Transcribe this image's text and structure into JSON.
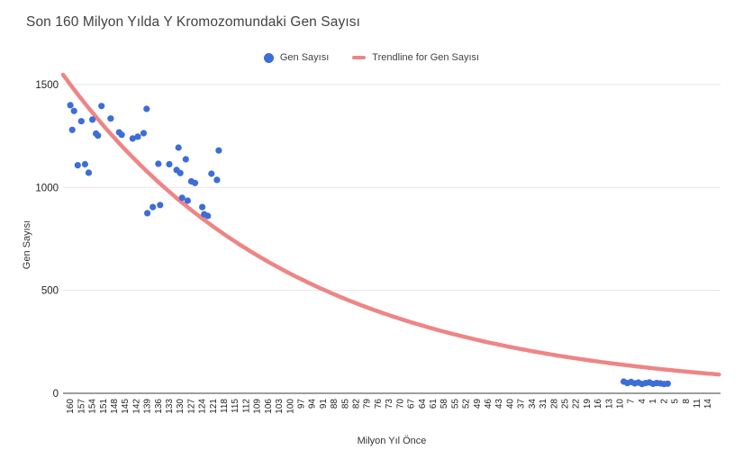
{
  "title": "Son 160 Milyon Yılda Y Kromozomundaki Gen Sayısı",
  "legend": {
    "series_label": "Gen Sayısı",
    "trendline_label": "Trendline for Gen Sayısı"
  },
  "colors": {
    "points": "#3d6dd6",
    "trendline": "#ee8585",
    "gridline": "#e6e6e6",
    "axis_line": "#9e9e9e",
    "tick_text": "#1f1f1f",
    "title_text": "#424242"
  },
  "chart_data": {
    "type": "scatter",
    "title": "Son 160 Milyon Yılda Y Kromozomundaki Gen Sayısı",
    "xlabel": "Milyon Yıl Önce",
    "ylabel": "Gen Sayısı",
    "grid": "horizontal only",
    "legend_position": "top center",
    "y_axis": {
      "min": 0,
      "max": 1500,
      "ticks": [
        0,
        500,
        1000,
        1500
      ]
    },
    "x_axis": {
      "tick_start": 160,
      "tick_step": -3,
      "note": "axis runs left-to-right from 160 Mya down past 0; labels shown as absolute values",
      "tick_labels": [
        "160",
        "157",
        "154",
        "151",
        "148",
        "145",
        "142",
        "139",
        "136",
        "133",
        "130",
        "127",
        "124",
        "121",
        "118",
        "115",
        "112",
        "109",
        "106",
        "103",
        "100",
        "97",
        "94",
        "91",
        "88",
        "85",
        "82",
        "79",
        "76",
        "73",
        "70",
        "67",
        "64",
        "61",
        "58",
        "55",
        "52",
        "49",
        "46",
        "43",
        "40",
        "37",
        "34",
        "31",
        "28",
        "25",
        "22",
        "19",
        "16",
        "13",
        "10",
        "7",
        "4",
        "1",
        "2",
        "5",
        "8",
        "11",
        "14"
      ]
    },
    "series": [
      {
        "name": "Gen Sayısı",
        "points": [
          [
            160,
            1400
          ],
          [
            159,
            1372
          ],
          [
            159.5,
            1280
          ],
          [
            157,
            1322
          ],
          [
            154,
            1330
          ],
          [
            158,
            1108
          ],
          [
            156,
            1113
          ],
          [
            155,
            1072
          ],
          [
            151.5,
            1396
          ],
          [
            153,
            1262
          ],
          [
            152.5,
            1252
          ],
          [
            149,
            1335
          ],
          [
            146.7,
            1268
          ],
          [
            146,
            1256
          ],
          [
            143,
            1238
          ],
          [
            141.6,
            1247
          ],
          [
            139.2,
            1382
          ],
          [
            140,
            1264
          ],
          [
            136,
            1115
          ],
          [
            133,
            1113
          ],
          [
            137.5,
            905
          ],
          [
            135.5,
            915
          ],
          [
            139,
            875
          ],
          [
            130.5,
            1194
          ],
          [
            131,
            1085
          ],
          [
            130,
            1070
          ],
          [
            128.5,
            1137
          ],
          [
            127,
            1030
          ],
          [
            126,
            1022
          ],
          [
            129.5,
            950
          ],
          [
            128,
            936
          ],
          [
            124,
            905
          ],
          [
            123.5,
            870
          ],
          [
            122.5,
            862
          ],
          [
            121.5,
            1067
          ],
          [
            119.5,
            1180
          ],
          [
            120,
            1037
          ],
          [
            9,
            57
          ],
          [
            8,
            50
          ],
          [
            7,
            55
          ],
          [
            6,
            48
          ],
          [
            5,
            52
          ],
          [
            4,
            45
          ],
          [
            3,
            50
          ],
          [
            2,
            53
          ],
          [
            1,
            46
          ],
          [
            0,
            50
          ],
          [
            -1,
            48
          ],
          [
            -2,
            45
          ],
          [
            -3,
            47
          ]
        ]
      }
    ],
    "trendline": {
      "name": "Trendline for Gen Sayısı",
      "model": "exponential",
      "formula": "y = 1500 * exp(-0.0158 * (160 - x))",
      "a": 1500,
      "k": 0.0158,
      "anchor_x": 160,
      "draw_domain": [
        162,
        -17.4
      ]
    }
  }
}
